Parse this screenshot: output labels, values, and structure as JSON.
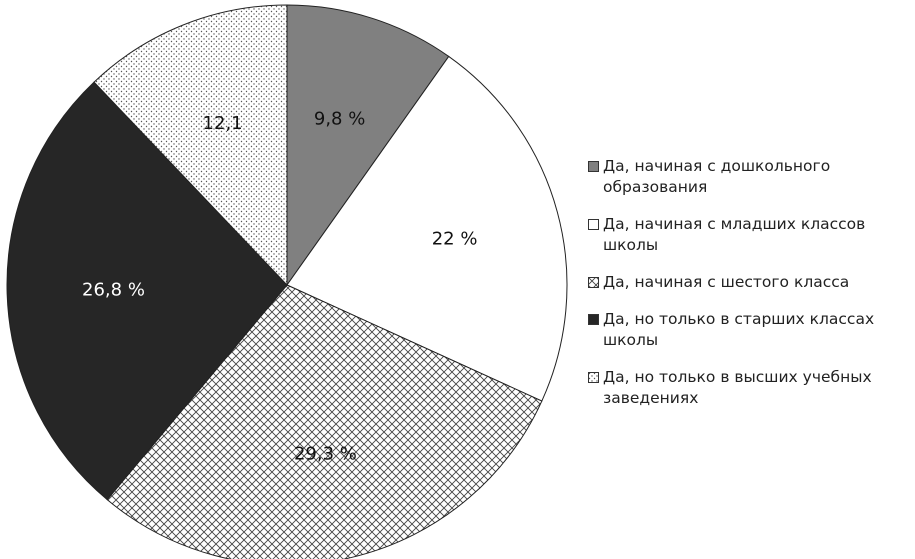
{
  "chart_data": {
    "type": "pie",
    "categories": [
      "Да, начиная с дошкольного образования",
      "Да, начиная с младших классов школы",
      "Да, начиная с шестого класса",
      "Да, но только в старших классах школы",
      "Да, но только в высших учебных заведениях"
    ],
    "values": [
      9.8,
      22,
      29.3,
      26.8,
      12.1
    ],
    "value_labels": [
      "9,8 %",
      "22 %",
      "29,3 %",
      "26,8 %",
      "12,1"
    ],
    "colors": [
      "#808080",
      "#ffffff",
      "#ffffff",
      "#262626",
      "#ffffff"
    ],
    "patterns": [
      null,
      null,
      "crosshatch",
      null,
      "dots"
    ],
    "legend": "right"
  }
}
